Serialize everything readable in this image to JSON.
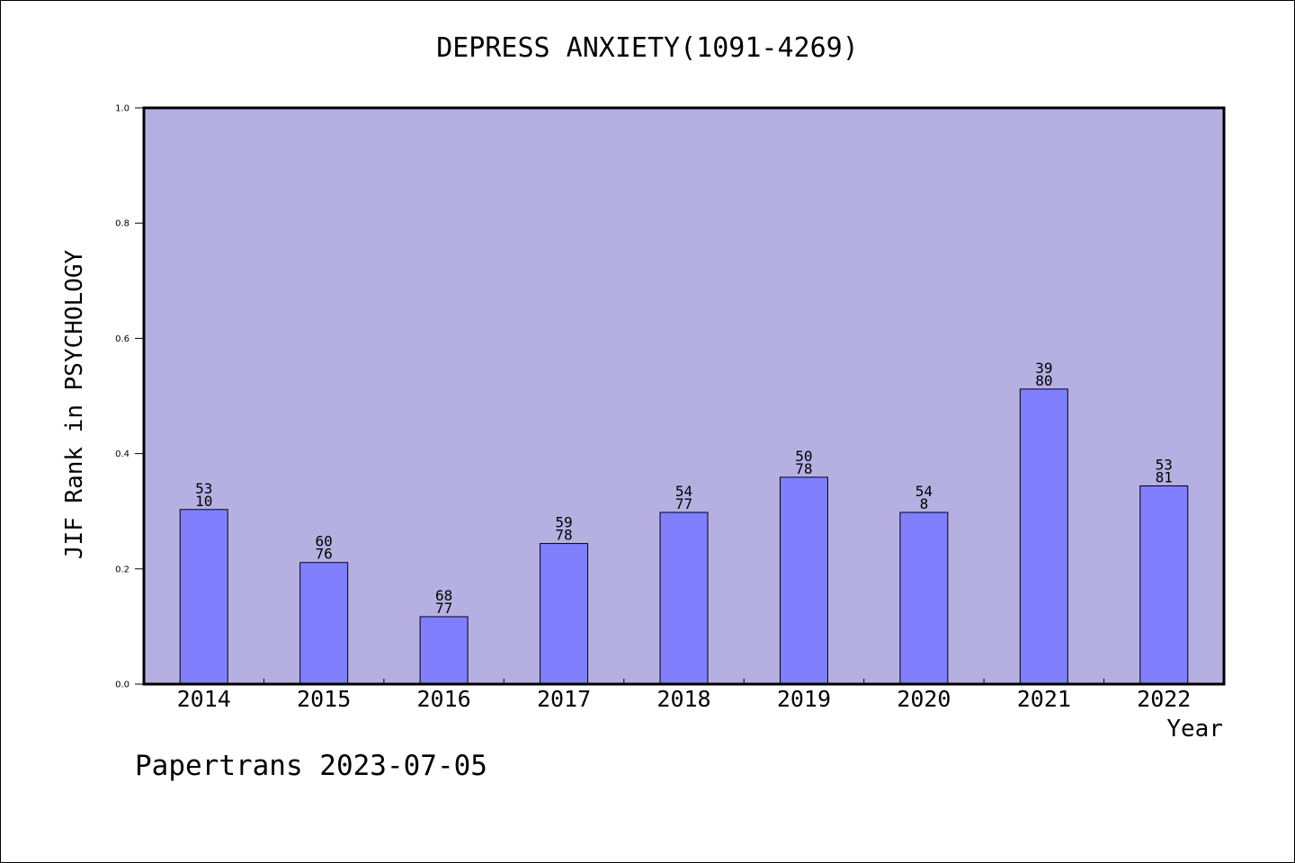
{
  "chart_data": {
    "type": "bar",
    "title": "DEPRESS ANXIETY(1091-4269)",
    "xlabel": "Year",
    "ylabel": "JIF Rank in PSYCHOLOGY",
    "categories": [
      "2014",
      "2015",
      "2016",
      "2017",
      "2018",
      "2019",
      "2020",
      "2021",
      "2022"
    ],
    "values": [
      0.303,
      0.211,
      0.117,
      0.244,
      0.298,
      0.359,
      0.298,
      0.512,
      0.344
    ],
    "data_labels": [
      [
        "53",
        "10"
      ],
      [
        "60",
        "76"
      ],
      [
        "68",
        "77"
      ],
      [
        "59",
        "78"
      ],
      [
        "54",
        "77"
      ],
      [
        "50",
        "78"
      ],
      [
        "54",
        "8"
      ],
      [
        "39",
        "80"
      ],
      [
        "53",
        "81"
      ]
    ],
    "ylim": [
      0,
      1.0
    ],
    "yticks": [
      "0.0",
      "0.2",
      "0.4",
      "0.6",
      "0.8",
      "1.0"
    ],
    "grid": false,
    "colors": {
      "plot_background": "#b6b0e2",
      "bar_fill": "#8080ff",
      "bar_stroke": "#000000"
    }
  },
  "footer": "Papertrans 2023-07-05"
}
